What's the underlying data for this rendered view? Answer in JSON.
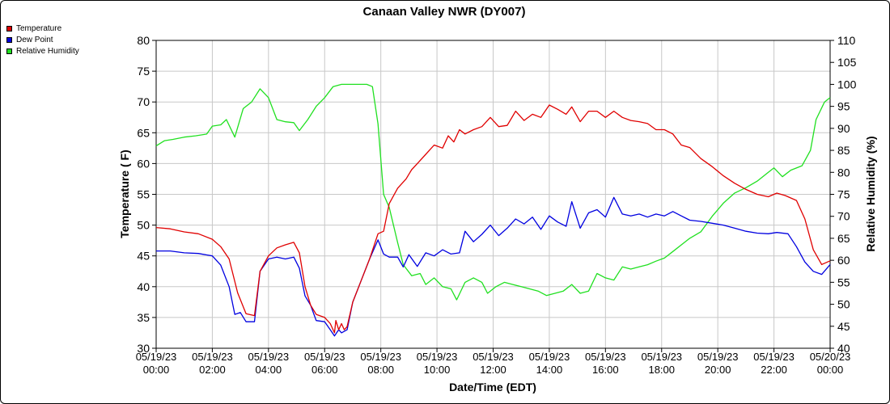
{
  "chart_data": {
    "type": "line",
    "title": "Canaan Valley NWR (DY007)",
    "xlabel": "Date/Time (EDT)",
    "ylabel_left": "Temperature ( F)",
    "ylabel_right": "Relative Humidity (%)",
    "y_left_range": [
      30,
      80
    ],
    "y_right_range": [
      40,
      110
    ],
    "y_left_ticks": [
      "30",
      "35",
      "40",
      "45",
      "50",
      "55",
      "60",
      "65",
      "70",
      "75",
      "80"
    ],
    "y_right_ticks": [
      "40",
      "45",
      "50",
      "55",
      "60",
      "65",
      "70",
      "75",
      "80",
      "85",
      "90",
      "95",
      "100",
      "105",
      "110"
    ],
    "x_range_hours": [
      0,
      24
    ],
    "x_ticks": [
      {
        "date": "05/19/23",
        "time": "00:00"
      },
      {
        "date": "05/19/23",
        "time": "02:00"
      },
      {
        "date": "05/19/23",
        "time": "04:00"
      },
      {
        "date": "05/19/23",
        "time": "06:00"
      },
      {
        "date": "05/19/23",
        "time": "08:00"
      },
      {
        "date": "05/19/23",
        "time": "10:00"
      },
      {
        "date": "05/19/23",
        "time": "12:00"
      },
      {
        "date": "05/19/23",
        "time": "14:00"
      },
      {
        "date": "05/19/23",
        "time": "16:00"
      },
      {
        "date": "05/19/23",
        "time": "18:00"
      },
      {
        "date": "05/19/23",
        "time": "20:00"
      },
      {
        "date": "05/19/23",
        "time": "22:00"
      },
      {
        "date": "05/20/23",
        "time": "00:00"
      }
    ],
    "grid": true,
    "legend_position": "top-left",
    "series": [
      {
        "name": "Temperature",
        "color": "#e00000",
        "axis": "left",
        "points": [
          [
            0,
            49.6
          ],
          [
            0.5,
            49.4
          ],
          [
            1,
            48.9
          ],
          [
            1.5,
            48.6
          ],
          [
            2,
            47.7
          ],
          [
            2.3,
            46.5
          ],
          [
            2.6,
            44.5
          ],
          [
            2.9,
            39
          ],
          [
            3.2,
            35.6
          ],
          [
            3.5,
            35.3
          ],
          [
            3.7,
            42.5
          ],
          [
            4,
            45
          ],
          [
            4.3,
            46.3
          ],
          [
            4.6,
            46.8
          ],
          [
            4.9,
            47.2
          ],
          [
            5.1,
            45.5
          ],
          [
            5.3,
            40
          ],
          [
            5.5,
            37
          ],
          [
            5.7,
            35.5
          ],
          [
            6,
            35
          ],
          [
            6.2,
            34
          ],
          [
            6.35,
            32.5
          ],
          [
            6.4,
            34.5
          ],
          [
            6.5,
            33
          ],
          [
            6.6,
            34
          ],
          [
            6.7,
            33
          ],
          [
            6.8,
            33.5
          ],
          [
            7,
            37.5
          ],
          [
            7.3,
            41
          ],
          [
            7.6,
            44.5
          ],
          [
            7.9,
            48.6
          ],
          [
            8.1,
            49
          ],
          [
            8.3,
            53.5
          ],
          [
            8.6,
            56
          ],
          [
            8.9,
            57.5
          ],
          [
            9.1,
            59
          ],
          [
            9.3,
            60
          ],
          [
            9.6,
            61.5
          ],
          [
            9.9,
            63
          ],
          [
            10.2,
            62.5
          ],
          [
            10.4,
            64.5
          ],
          [
            10.6,
            63.5
          ],
          [
            10.8,
            65.5
          ],
          [
            11,
            64.8
          ],
          [
            11.3,
            65.5
          ],
          [
            11.6,
            66
          ],
          [
            11.9,
            67.5
          ],
          [
            12.2,
            66
          ],
          [
            12.5,
            66.2
          ],
          [
            12.8,
            68.5
          ],
          [
            13.1,
            67
          ],
          [
            13.4,
            68
          ],
          [
            13.7,
            67.5
          ],
          [
            14,
            69.5
          ],
          [
            14.3,
            68.8
          ],
          [
            14.6,
            68
          ],
          [
            14.8,
            69.2
          ],
          [
            15.1,
            66.8
          ],
          [
            15.4,
            68.5
          ],
          [
            15.7,
            68.5
          ],
          [
            16,
            67.5
          ],
          [
            16.3,
            68.5
          ],
          [
            16.6,
            67.5
          ],
          [
            16.9,
            67
          ],
          [
            17.2,
            66.8
          ],
          [
            17.5,
            66.5
          ],
          [
            17.8,
            65.5
          ],
          [
            18.1,
            65.5
          ],
          [
            18.4,
            64.8
          ],
          [
            18.7,
            63
          ],
          [
            19,
            62.6
          ],
          [
            19.4,
            60.8
          ],
          [
            19.8,
            59.5
          ],
          [
            20.2,
            58
          ],
          [
            20.6,
            56.8
          ],
          [
            21,
            55.8
          ],
          [
            21.4,
            55
          ],
          [
            21.8,
            54.6
          ],
          [
            22.1,
            55.2
          ],
          [
            22.4,
            54.8
          ],
          [
            22.8,
            54
          ],
          [
            23.1,
            51
          ],
          [
            23.4,
            46
          ],
          [
            23.7,
            43.6
          ],
          [
            24,
            44.2
          ]
        ]
      },
      {
        "name": "Dew Point",
        "color": "#0000e0",
        "axis": "left",
        "points": [
          [
            0,
            45.8
          ],
          [
            0.5,
            45.8
          ],
          [
            1,
            45.5
          ],
          [
            1.5,
            45.4
          ],
          [
            2,
            45
          ],
          [
            2.3,
            43.5
          ],
          [
            2.6,
            40
          ],
          [
            2.8,
            35.5
          ],
          [
            3,
            35.8
          ],
          [
            3.2,
            34.3
          ],
          [
            3.5,
            34.3
          ],
          [
            3.7,
            42.5
          ],
          [
            4,
            44.5
          ],
          [
            4.3,
            44.8
          ],
          [
            4.6,
            44.5
          ],
          [
            4.9,
            44.8
          ],
          [
            5.1,
            43
          ],
          [
            5.3,
            38.5
          ],
          [
            5.5,
            37
          ],
          [
            5.7,
            34.5
          ],
          [
            6,
            34.3
          ],
          [
            6.2,
            33
          ],
          [
            6.35,
            32
          ],
          [
            6.5,
            33
          ],
          [
            6.6,
            32.5
          ],
          [
            6.8,
            33
          ],
          [
            7,
            37.5
          ],
          [
            7.3,
            41
          ],
          [
            7.6,
            44.5
          ],
          [
            7.9,
            47.6
          ],
          [
            8.1,
            45.3
          ],
          [
            8.3,
            44.8
          ],
          [
            8.6,
            44.8
          ],
          [
            8.8,
            43.2
          ],
          [
            9,
            45.2
          ],
          [
            9.3,
            43.3
          ],
          [
            9.6,
            45.5
          ],
          [
            9.9,
            45
          ],
          [
            10.2,
            46
          ],
          [
            10.5,
            45.3
          ],
          [
            10.8,
            45.5
          ],
          [
            11,
            49
          ],
          [
            11.3,
            47.3
          ],
          [
            11.6,
            48.5
          ],
          [
            11.9,
            50
          ],
          [
            12.2,
            48.3
          ],
          [
            12.5,
            49.5
          ],
          [
            12.8,
            51
          ],
          [
            13.1,
            50.2
          ],
          [
            13.4,
            51.3
          ],
          [
            13.7,
            49.3
          ],
          [
            14,
            51.5
          ],
          [
            14.3,
            50.5
          ],
          [
            14.6,
            49.8
          ],
          [
            14.8,
            53.8
          ],
          [
            15.1,
            49.5
          ],
          [
            15.4,
            52
          ],
          [
            15.7,
            52.5
          ],
          [
            16,
            51.3
          ],
          [
            16.3,
            54.5
          ],
          [
            16.6,
            51.8
          ],
          [
            16.9,
            51.5
          ],
          [
            17.2,
            51.8
          ],
          [
            17.5,
            51.3
          ],
          [
            17.8,
            51.8
          ],
          [
            18.1,
            51.5
          ],
          [
            18.4,
            52.2
          ],
          [
            18.7,
            51.5
          ],
          [
            19,
            50.8
          ],
          [
            19.4,
            50.6
          ],
          [
            19.8,
            50.3
          ],
          [
            20.2,
            50
          ],
          [
            20.6,
            49.5
          ],
          [
            21,
            49
          ],
          [
            21.4,
            48.7
          ],
          [
            21.8,
            48.6
          ],
          [
            22.1,
            48.8
          ],
          [
            22.5,
            48.6
          ],
          [
            22.8,
            46.5
          ],
          [
            23.1,
            44
          ],
          [
            23.4,
            42.5
          ],
          [
            23.7,
            42
          ],
          [
            24,
            43.6
          ]
        ]
      },
      {
        "name": "Relative Humidity",
        "color": "#20e020",
        "axis": "right",
        "points": [
          [
            0,
            86
          ],
          [
            0.3,
            87.2
          ],
          [
            0.6,
            87.5
          ],
          [
            1,
            88
          ],
          [
            1.4,
            88.3
          ],
          [
            1.8,
            88.7
          ],
          [
            2,
            90.5
          ],
          [
            2.3,
            90.8
          ],
          [
            2.5,
            92
          ],
          [
            2.8,
            88
          ],
          [
            3.1,
            94.5
          ],
          [
            3.4,
            96
          ],
          [
            3.7,
            99
          ],
          [
            4,
            97
          ],
          [
            4.3,
            92
          ],
          [
            4.6,
            91.5
          ],
          [
            4.9,
            91.3
          ],
          [
            5.1,
            89.5
          ],
          [
            5.4,
            92
          ],
          [
            5.7,
            95
          ],
          [
            6,
            97
          ],
          [
            6.3,
            99.5
          ],
          [
            6.6,
            100
          ],
          [
            7,
            100
          ],
          [
            7.5,
            100
          ],
          [
            7.7,
            99.5
          ],
          [
            7.9,
            91
          ],
          [
            8.1,
            75
          ],
          [
            8.3,
            72
          ],
          [
            8.6,
            64
          ],
          [
            8.8,
            59
          ],
          [
            9.1,
            56.5
          ],
          [
            9.4,
            57
          ],
          [
            9.6,
            54.5
          ],
          [
            9.9,
            56
          ],
          [
            10.2,
            54
          ],
          [
            10.5,
            53.5
          ],
          [
            10.7,
            51
          ],
          [
            11,
            55
          ],
          [
            11.3,
            56
          ],
          [
            11.6,
            55
          ],
          [
            11.8,
            52.5
          ],
          [
            12.1,
            54
          ],
          [
            12.4,
            55
          ],
          [
            12.7,
            54.5
          ],
          [
            13,
            54
          ],
          [
            13.3,
            53.5
          ],
          [
            13.6,
            53
          ],
          [
            13.9,
            52
          ],
          [
            14.2,
            52.5
          ],
          [
            14.5,
            53
          ],
          [
            14.8,
            54.5
          ],
          [
            15.1,
            52.5
          ],
          [
            15.4,
            53
          ],
          [
            15.7,
            57
          ],
          [
            16,
            56
          ],
          [
            16.3,
            55.5
          ],
          [
            16.6,
            58.5
          ],
          [
            16.9,
            58
          ],
          [
            17.2,
            58.5
          ],
          [
            17.5,
            59
          ],
          [
            17.8,
            59.8
          ],
          [
            18.1,
            60.5
          ],
          [
            18.4,
            62
          ],
          [
            18.7,
            63.5
          ],
          [
            19,
            65
          ],
          [
            19.4,
            66.5
          ],
          [
            19.8,
            70
          ],
          [
            20.2,
            73
          ],
          [
            20.6,
            75.3
          ],
          [
            21,
            76.5
          ],
          [
            21.4,
            78
          ],
          [
            21.8,
            80
          ],
          [
            22,
            81
          ],
          [
            22.3,
            79
          ],
          [
            22.6,
            80.5
          ],
          [
            23,
            81.5
          ],
          [
            23.3,
            85
          ],
          [
            23.5,
            92
          ],
          [
            23.8,
            96
          ],
          [
            24,
            97
          ]
        ]
      }
    ]
  }
}
